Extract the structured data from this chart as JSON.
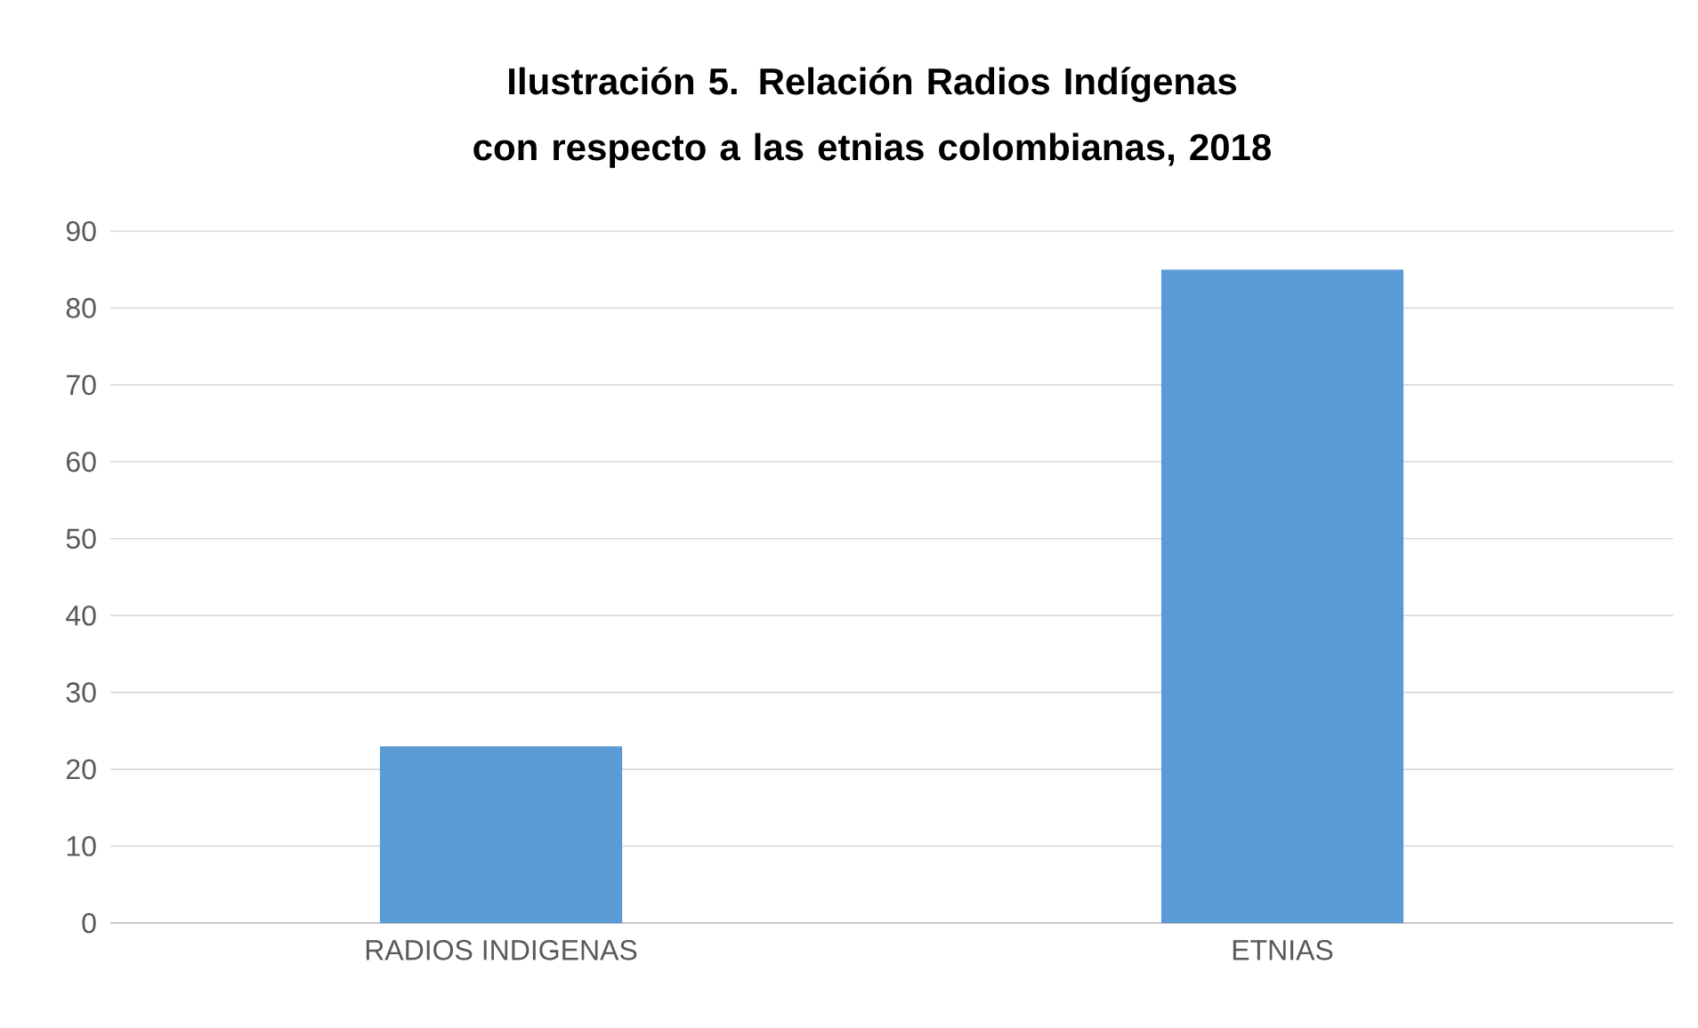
{
  "chart_data": {
    "type": "bar",
    "title": "Ilustración 5. Relación Radios Indígenas con respecto a las etnias colombianas, 2018",
    "categories": [
      "RADIOS INDIGENAS",
      "ETNIAS"
    ],
    "values": [
      23,
      85
    ],
    "color": "#5b9bd5",
    "ylim": [
      0,
      90
    ],
    "yticks": [
      0,
      10,
      20,
      30,
      40,
      50,
      60,
      70,
      80,
      90
    ],
    "grid": "y"
  }
}
